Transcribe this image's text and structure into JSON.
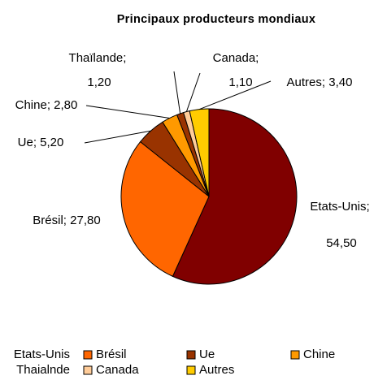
{
  "chart_data": {
    "type": "pie",
    "title": "Principaux producteurs mondiaux",
    "categories": [
      "Etats-Unis",
      "Brésil",
      "Ue",
      "Chine",
      "Thaialnde",
      "Canada",
      "Autres"
    ],
    "values": [
      54.5,
      27.8,
      5.2,
      2.8,
      1.2,
      1.1,
      3.4
    ],
    "value_labels": [
      [
        "Etats-Unis;",
        "54,50"
      ],
      [
        "Brésil; 27,80"
      ],
      [
        "Ue; 5,20"
      ],
      [
        "Chine; 2,80"
      ],
      [
        "Thaïlande;",
        "1,20"
      ],
      [
        "Canada;",
        "1,10"
      ],
      [
        "Autres; 3,40"
      ]
    ],
    "colors": [
      "#800000",
      "#ff6600",
      "#993300",
      "#ff9900",
      "#993300",
      "#ffcc99",
      "#ffcc00"
    ],
    "legend": "bottom"
  }
}
